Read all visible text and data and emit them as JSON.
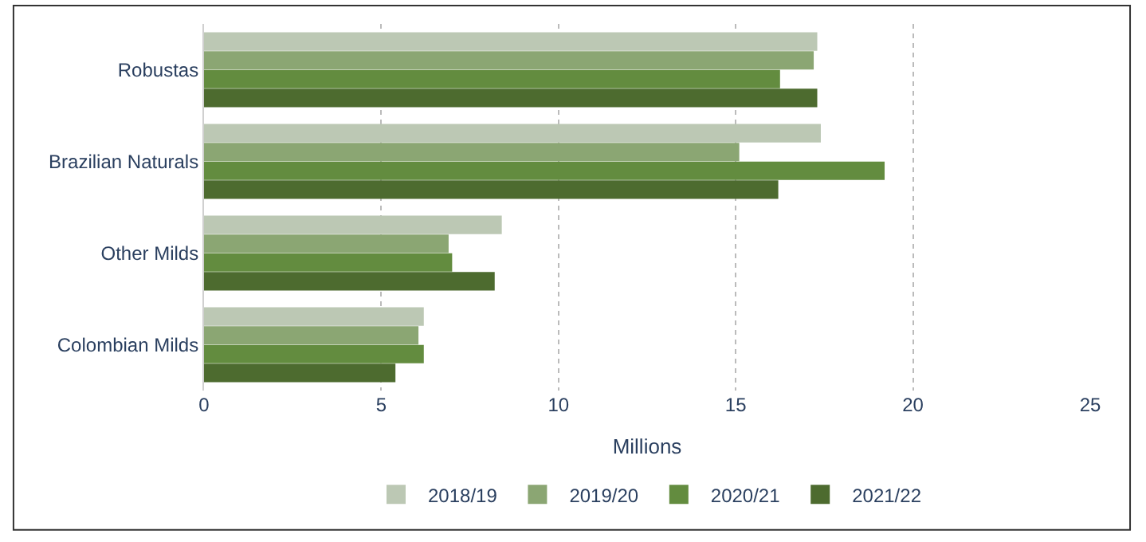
{
  "chart_data": {
    "type": "bar",
    "orientation": "horizontal",
    "xlabel": "Millions",
    "categories": [
      "Robustas",
      "Brazilian Naturals",
      "Other Milds",
      "Colombian Milds"
    ],
    "series": [
      {
        "name": "2018/19",
        "color": "#bcc8b4",
        "values": [
          17.3,
          17.4,
          8.4,
          6.2
        ]
      },
      {
        "name": "2019/20",
        "color": "#8ba673",
        "values": [
          17.2,
          15.1,
          6.9,
          6.05
        ]
      },
      {
        "name": "2020/21",
        "color": "#638c3f",
        "values": [
          16.25,
          19.2,
          7.0,
          6.2
        ]
      },
      {
        "name": "2021/22",
        "color": "#4d6b2f",
        "values": [
          17.3,
          16.2,
          8.2,
          5.4
        ]
      }
    ],
    "xlim": [
      0,
      25
    ],
    "xticks": [
      0,
      5,
      10,
      15,
      20,
      25
    ],
    "grid": "x",
    "legend": "bottom"
  }
}
